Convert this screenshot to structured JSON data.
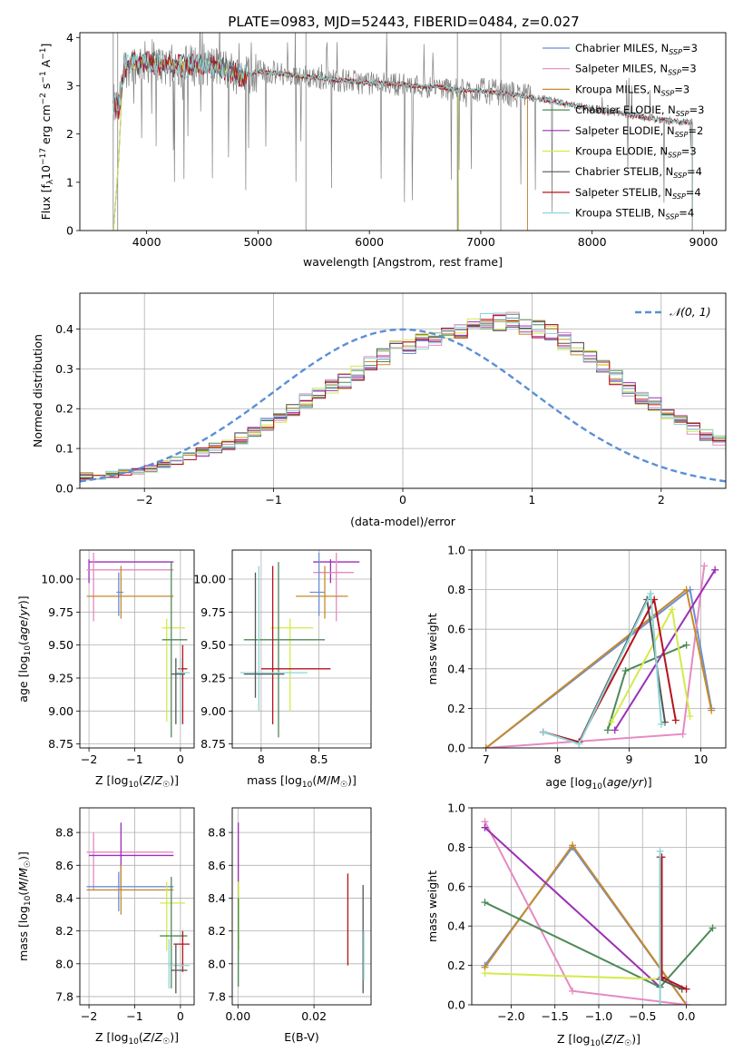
{
  "title": "PLATE=0983, MJD=52443, FIBERID=0484, z=0.027",
  "colors": {
    "Chabrier MILES": "#6a8fd8",
    "Salpeter MILES": "#e58ac2",
    "Kroupa MILES": "#c78a2a",
    "Chabrier ELODIE": "#4d8a57",
    "Salpeter ELODIE": "#9b2fb6",
    "Kroupa ELODIE": "#d4ea4a",
    "Chabrier STELIB": "#555555",
    "Salpeter STELIB": "#b5121b",
    "Kroupa STELIB": "#8ed5d7",
    "data": "#808080",
    "normal": "#5b8fd6",
    "orange": "#e07b2a"
  },
  "legend": [
    {
      "name": "Chabrier MILES",
      "pre": "Chabrier MILES, N",
      "sub": "SSP",
      "post": "=3"
    },
    {
      "name": "Salpeter MILES",
      "pre": "Salpeter MILES, N",
      "sub": "SSP",
      "post": "=3"
    },
    {
      "name": "Kroupa MILES",
      "pre": "Kroupa MILES, N",
      "sub": "SSP",
      "post": "=3"
    },
    {
      "name": "Chabrier ELODIE",
      "pre": "Chabrier ELODIE, N",
      "sub": "SSP",
      "post": "=3"
    },
    {
      "name": "Salpeter ELODIE",
      "pre": "Salpeter ELODIE, N",
      "sub": "SSP",
      "post": "=2"
    },
    {
      "name": "Kroupa ELODIE",
      "pre": "Kroupa ELODIE, N",
      "sub": "SSP",
      "post": "=3"
    },
    {
      "name": "Chabrier STELIB",
      "pre": "Chabrier STELIB, N",
      "sub": "SSP",
      "post": "=4"
    },
    {
      "name": "Salpeter STELIB",
      "pre": "Salpeter STELIB, N",
      "sub": "SSP",
      "post": "=4"
    },
    {
      "name": "Kroupa STELIB",
      "pre": "Kroupa STELIB, N",
      "sub": "SSP",
      "post": "=4"
    }
  ],
  "normal_legend": "𝒩(0, 1)",
  "chart_data": [
    {
      "type": "line",
      "panel": "spectrum",
      "xlabel": "wavelength [Angstrom, rest frame]",
      "ylabel_parts": [
        "Flux [f",
        "λ",
        "10",
        "−17",
        " erg cm",
        "−2",
        " s",
        "−1",
        " A",
        "−1",
        "]"
      ],
      "xlim": [
        3400,
        9200
      ],
      "ylim": [
        0,
        4.1
      ],
      "xticks": [
        4000,
        5000,
        6000,
        7000,
        8000,
        9000
      ],
      "yticks": [
        0,
        1,
        2,
        3,
        4
      ],
      "continuum_x": [
        3700,
        3750,
        3800,
        3850,
        3950,
        4100,
        4300,
        4500,
        4700,
        4860,
        5000,
        5200,
        5400,
        5600,
        5800,
        6000,
        6200,
        6400,
        6600,
        6800,
        7000,
        7200,
        7400,
        7600,
        7800,
        8000,
        8200,
        8400,
        8600,
        8800
      ],
      "continuum_y": [
        2.6,
        2.5,
        3.35,
        3.45,
        3.5,
        3.45,
        3.4,
        3.45,
        3.35,
        3.2,
        3.3,
        3.25,
        3.2,
        3.15,
        3.1,
        3.05,
        3.05,
        3.0,
        2.98,
        2.9,
        2.9,
        2.85,
        2.78,
        2.7,
        2.6,
        2.52,
        2.45,
        2.38,
        2.3,
        2.25
      ],
      "model_end": {
        "MILES": 7420,
        "ELODIE": 6800,
        "STELIB": 8900
      }
    },
    {
      "type": "area",
      "panel": "residual-histogram",
      "xlabel": "(data-model)/error",
      "ylabel": "Normed distribution",
      "xlim": [
        -2.5,
        2.5
      ],
      "ylim": [
        0,
        0.49
      ],
      "xticks": [
        -2,
        -1,
        0,
        1,
        2
      ],
      "yticks": [
        0,
        0.1,
        0.2,
        0.3,
        0.4
      ],
      "bin_width": 0.1,
      "base_edges_start": -2.5,
      "base_values": [
        0.03,
        0.03,
        0.035,
        0.04,
        0.045,
        0.05,
        0.06,
        0.07,
        0.08,
        0.09,
        0.1,
        0.11,
        0.125,
        0.14,
        0.16,
        0.18,
        0.2,
        0.22,
        0.24,
        0.255,
        0.27,
        0.29,
        0.31,
        0.33,
        0.35,
        0.36,
        0.37,
        0.38,
        0.39,
        0.4,
        0.41,
        0.415,
        0.42,
        0.42,
        0.41,
        0.4,
        0.39,
        0.37,
        0.35,
        0.33,
        0.3,
        0.28,
        0.25,
        0.23,
        0.21,
        0.19,
        0.17,
        0.15,
        0.135,
        0.12,
        0.105,
        0.09,
        0.08,
        0.07,
        0.065,
        0.06,
        0.055,
        0.05,
        0.045,
        0.04,
        0.035,
        0.03,
        0.03,
        0.028,
        0.025,
        0.025,
        0.022,
        0.02,
        0.02,
        0.02
      ]
    },
    {
      "type": "scatter",
      "panel": "age-vs-Z",
      "xlabel": "Z [log10(Z/Z☉)]",
      "ylabel": "age  [log10(age/yr)]",
      "xlim": [
        -2.2,
        0.3
      ],
      "ylim": [
        8.72,
        10.22
      ],
      "xticks": [
        -2,
        -1,
        0
      ],
      "yticks": [
        8.75,
        9.0,
        9.25,
        9.5,
        9.75,
        10.0
      ],
      "points": [
        {
          "s": "Salpeter ELODIE",
          "x": -2.0,
          "y": 10.13,
          "xr": [
            -2.0,
            -0.15
          ],
          "yr": [
            9.97,
            10.15
          ]
        },
        {
          "s": "Salpeter MILES",
          "x": -1.9,
          "y": 10.07,
          "xr": [
            -2.05,
            -0.15
          ],
          "yr": [
            9.68,
            10.2
          ]
        },
        {
          "s": "Kroupa MILES",
          "x": -1.3,
          "y": 9.87,
          "xr": [
            -2.05,
            -0.15
          ],
          "yr": [
            9.7,
            10.1
          ]
        },
        {
          "s": "Chabrier MILES",
          "x": -1.35,
          "y": 9.9,
          "xr": [
            -1.4,
            -1.25
          ],
          "yr": [
            9.72,
            10.05
          ]
        },
        {
          "s": "Kroupa ELODIE",
          "x": -0.3,
          "y": 9.63,
          "xr": [
            -0.4,
            0.1
          ],
          "yr": [
            8.92,
            9.7
          ]
        },
        {
          "s": "Chabrier ELODIE",
          "x": -0.2,
          "y": 9.54,
          "xr": [
            -0.4,
            0.15
          ],
          "yr": [
            8.8,
            10.13
          ]
        },
        {
          "s": "Salpeter STELIB",
          "x": 0.05,
          "y": 9.32,
          "xr": [
            -0.05,
            0.15
          ],
          "yr": [
            8.9,
            9.5
          ]
        },
        {
          "s": "Kroupa STELIB",
          "x": 0.0,
          "y": 9.29,
          "xr": [
            -0.1,
            0.2
          ],
          "yr": [
            8.9,
            9.4
          ]
        },
        {
          "s": "Chabrier STELIB",
          "x": -0.1,
          "y": 9.28,
          "xr": [
            -0.2,
            0.1
          ],
          "yr": [
            8.9,
            9.4
          ]
        }
      ]
    },
    {
      "type": "scatter",
      "panel": "age-vs-mass",
      "xlabel": "mass [log10(M/M☉)]",
      "xlim": [
        7.75,
        8.95
      ],
      "ylim": [
        8.72,
        10.22
      ],
      "xticks": [
        8.0,
        8.5
      ],
      "yticks": [
        8.75,
        9.0,
        9.25,
        9.5,
        9.75,
        10.0
      ],
      "points": [
        {
          "s": "Salpeter ELODIE",
          "x": 8.6,
          "y": 10.13,
          "xr": [
            8.45,
            8.85
          ],
          "yr": [
            9.97,
            10.15
          ]
        },
        {
          "s": "Salpeter MILES",
          "x": 8.65,
          "y": 10.05,
          "xr": [
            8.45,
            8.8
          ],
          "yr": [
            9.68,
            10.2
          ]
        },
        {
          "s": "Kroupa MILES",
          "x": 8.55,
          "y": 9.87,
          "xr": [
            8.3,
            8.75
          ],
          "yr": [
            9.7,
            10.1
          ]
        },
        {
          "s": "Chabrier MILES",
          "x": 8.5,
          "y": 9.9,
          "xr": [
            8.42,
            8.55
          ],
          "yr": [
            9.72,
            10.2
          ]
        },
        {
          "s": "Kroupa ELODIE",
          "x": 8.25,
          "y": 9.63,
          "xr": [
            8.08,
            8.45
          ],
          "yr": [
            9.0,
            9.7
          ]
        },
        {
          "s": "Chabrier ELODIE",
          "x": 8.15,
          "y": 9.54,
          "xr": [
            7.85,
            8.55
          ],
          "yr": [
            8.8,
            10.13
          ]
        },
        {
          "s": "Salpeter STELIB",
          "x": 8.1,
          "y": 9.32,
          "xr": [
            8.0,
            8.6
          ],
          "yr": [
            8.9,
            10.1
          ]
        },
        {
          "s": "Kroupa STELIB",
          "x": 7.98,
          "y": 9.29,
          "xr": [
            7.82,
            8.4
          ],
          "yr": [
            9.0,
            10.1
          ]
        },
        {
          "s": "Chabrier STELIB",
          "x": 7.95,
          "y": 9.28,
          "xr": [
            7.85,
            8.2
          ],
          "yr": [
            9.1,
            10.05
          ]
        }
      ]
    },
    {
      "type": "line",
      "panel": "mass-weight-vs-age",
      "xlabel": "age  [log10(age/yr)]",
      "ylabel": "mass weight",
      "xlim": [
        6.8,
        10.35
      ],
      "ylim": [
        0,
        1
      ],
      "xticks": [
        7,
        8,
        9,
        10
      ],
      "yticks": [
        0,
        0.2,
        0.4,
        0.6,
        0.8,
        1.0
      ],
      "series": [
        {
          "name": "Chabrier MILES",
          "x": [
            7.0,
            9.85,
            10.15
          ],
          "y": [
            0.0,
            0.8,
            0.2
          ]
        },
        {
          "name": "Salpeter MILES",
          "x": [
            7.0,
            9.75,
            10.05
          ],
          "y": [
            0.0,
            0.07,
            0.92
          ]
        },
        {
          "name": "Kroupa MILES",
          "x": [
            7.0,
            9.8,
            10.15
          ],
          "y": [
            0.0,
            0.8,
            0.19
          ]
        },
        {
          "name": "Chabrier ELODIE",
          "x": [
            8.7,
            8.95,
            9.8
          ],
          "y": [
            0.09,
            0.39,
            0.52
          ]
        },
        {
          "name": "Salpeter ELODIE",
          "x": [
            8.8,
            10.2
          ],
          "y": [
            0.09,
            0.9
          ]
        },
        {
          "name": "Kroupa ELODIE",
          "x": [
            8.75,
            9.6,
            9.85
          ],
          "y": [
            0.13,
            0.7,
            0.16
          ]
        },
        {
          "name": "Chabrier STELIB",
          "x": [
            7.8,
            8.3,
            9.25,
            9.5
          ],
          "y": [
            0.08,
            0.03,
            0.75,
            0.13
          ]
        },
        {
          "name": "Salpeter STELIB",
          "x": [
            7.8,
            8.3,
            9.35,
            9.65
          ],
          "y": [
            0.08,
            0.03,
            0.75,
            0.14
          ]
        },
        {
          "name": "Kroupa STELIB",
          "x": [
            7.8,
            8.3,
            9.3,
            9.45
          ],
          "y": [
            0.08,
            0.02,
            0.78,
            0.12
          ]
        }
      ]
    },
    {
      "type": "scatter",
      "panel": "mass-vs-Z",
      "xlabel": "Z [log10(Z/Z☉)]",
      "ylabel": "mass [log10(M/M☉)]",
      "xlim": [
        -2.2,
        0.3
      ],
      "ylim": [
        7.75,
        8.95
      ],
      "xticks": [
        -2,
        -1,
        0
      ],
      "yticks": [
        7.8,
        8.0,
        8.2,
        8.4,
        8.6,
        8.8
      ],
      "points": [
        {
          "s": "Salpeter MILES",
          "x": -1.9,
          "y": 8.68,
          "xr": [
            -2.05,
            -0.15
          ],
          "yr": [
            8.45,
            8.8
          ]
        },
        {
          "s": "Salpeter ELODIE",
          "x": -1.3,
          "y": 8.66,
          "xr": [
            -2.0,
            -0.15
          ],
          "yr": [
            8.45,
            8.86
          ]
        },
        {
          "s": "Chabrier MILES",
          "x": -1.35,
          "y": 8.47,
          "xr": [
            -2.05,
            -0.15
          ],
          "yr": [
            8.32,
            8.56
          ]
        },
        {
          "s": "Kroupa MILES",
          "x": -1.3,
          "y": 8.45,
          "xr": [
            -2.05,
            -0.15
          ],
          "yr": [
            8.3,
            8.6
          ]
        },
        {
          "s": "Kroupa ELODIE",
          "x": -0.3,
          "y": 8.37,
          "xr": [
            -0.45,
            0.1
          ],
          "yr": [
            8.08,
            8.5
          ]
        },
        {
          "s": "Chabrier ELODIE",
          "x": -0.2,
          "y": 8.17,
          "xr": [
            -0.45,
            0.15
          ],
          "yr": [
            7.85,
            8.53
          ]
        },
        {
          "s": "Salpeter STELIB",
          "x": 0.05,
          "y": 8.12,
          "xr": [
            -0.15,
            0.2
          ],
          "yr": [
            7.95,
            8.2
          ]
        },
        {
          "s": "Kroupa STELIB",
          "x": -0.25,
          "y": 7.99,
          "xr": [
            -0.25,
            0.2
          ],
          "yr": [
            7.85,
            8.15
          ]
        },
        {
          "s": "Chabrier STELIB",
          "x": -0.1,
          "y": 7.96,
          "xr": [
            -0.2,
            0.15
          ],
          "yr": [
            7.82,
            8.12
          ]
        }
      ]
    },
    {
      "type": "scatter",
      "panel": "mass-vs-EBV",
      "xlabel": "E(B-V)",
      "xlim": [
        -0.0015,
        0.035
      ],
      "ylim": [
        7.75,
        8.95
      ],
      "xticks": [
        0.0,
        0.02
      ],
      "xticklabels": [
        "0.00",
        "0.02"
      ],
      "yticks": [
        7.8,
        8.0,
        8.2,
        8.4,
        8.6,
        8.8
      ],
      "vlines": [
        {
          "s": "Salpeter ELODIE",
          "x": 0.0001,
          "yr": [
            8.5,
            8.86
          ]
        },
        {
          "s": "Kroupa ELODIE",
          "x": 0.0002,
          "yr": [
            8.08,
            8.5
          ]
        },
        {
          "s": "Chabrier ELODIE",
          "x": 0.0001,
          "yr": [
            7.86,
            8.4
          ]
        },
        {
          "s": "Salpeter STELIB",
          "x": 0.0289,
          "yr": [
            7.99,
            8.55
          ]
        },
        {
          "s": "Chabrier STELIB",
          "x": 0.0329,
          "yr": [
            7.82,
            8.48
          ]
        },
        {
          "s": "Kroupa STELIB",
          "x": 0.0331,
          "yr": [
            7.9,
            8.2
          ]
        }
      ]
    },
    {
      "type": "line",
      "panel": "mass-weight-vs-Z",
      "xlabel": "Z [log10(Z/Z☉)]",
      "ylabel": "mass weight",
      "xlim": [
        -2.45,
        0.45
      ],
      "ylim": [
        0,
        1
      ],
      "xticks": [
        -2.0,
        -1.5,
        -1.0,
        -0.5,
        0.0
      ],
      "xticklabels": [
        "−2.0",
        "−1.5",
        "−1.0",
        "−0.5",
        "0.0"
      ],
      "yticks": [
        0,
        0.2,
        0.4,
        0.6,
        0.8,
        1.0
      ],
      "series": [
        {
          "name": "Chabrier MILES",
          "x": [
            -2.3,
            -1.3,
            0.0
          ],
          "y": [
            0.2,
            0.8,
            0.0
          ]
        },
        {
          "name": "Kroupa MILES",
          "x": [
            -2.3,
            -1.3,
            0.0
          ],
          "y": [
            0.19,
            0.81,
            0.0
          ]
        },
        {
          "name": "Salpeter MILES",
          "x": [
            -2.3,
            -1.3,
            0.0
          ],
          "y": [
            0.93,
            0.07,
            0.0
          ]
        },
        {
          "name": "Salpeter ELODIE",
          "x": [
            -2.3,
            -0.3
          ],
          "y": [
            0.9,
            0.09
          ]
        },
        {
          "name": "Chabrier ELODIE",
          "x": [
            -2.3,
            -0.3,
            0.3
          ],
          "y": [
            0.52,
            0.09,
            0.39
          ]
        },
        {
          "name": "Kroupa ELODIE",
          "x": [
            -2.3,
            -0.3
          ],
          "y": [
            0.16,
            0.13
          ]
        },
        {
          "name": "Chabrier STELIB",
          "x": [
            -0.3,
            -0.3,
            -0.05
          ],
          "y": [
            0.75,
            0.13,
            0.08
          ]
        },
        {
          "name": "Salpeter STELIB",
          "x": [
            -0.28,
            -0.28,
            0.0
          ],
          "y": [
            0.75,
            0.14,
            0.08
          ]
        },
        {
          "name": "Kroupa STELIB",
          "x": [
            -0.3,
            -0.3
          ],
          "y": [
            0.78,
            0.0
          ]
        }
      ]
    }
  ]
}
